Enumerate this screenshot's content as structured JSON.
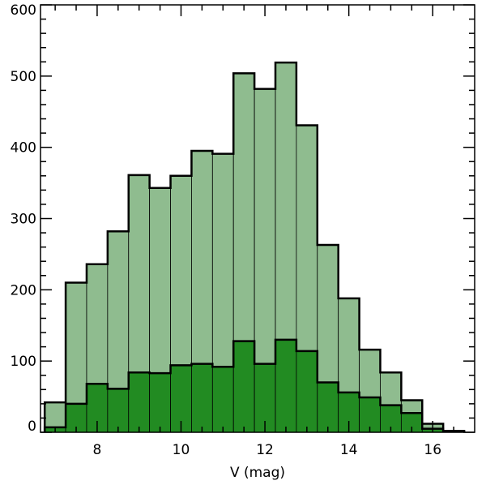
{
  "chart_data": {
    "type": "bar",
    "title": "",
    "xlabel": "V (mag)",
    "ylabel": "",
    "xlim": [
      6.65,
      17.0
    ],
    "ylim": [
      0,
      600
    ],
    "grid": false,
    "legend": "none",
    "bin_edges": [
      6.75,
      7.25,
      7.75,
      8.25,
      8.75,
      9.25,
      9.75,
      10.25,
      10.75,
      11.25,
      11.75,
      12.25,
      12.75,
      13.25,
      13.75,
      14.25,
      14.75,
      15.25,
      15.75,
      16.25,
      16.75
    ],
    "series": [
      {
        "color": "#8fbc8f",
        "values": [
          42,
          210,
          236,
          282,
          361,
          343,
          360,
          395,
          391,
          504,
          482,
          519,
          431,
          263,
          188,
          116,
          84,
          45,
          12,
          2
        ]
      },
      {
        "color": "#228b22",
        "values": [
          7,
          40,
          68,
          61,
          84,
          83,
          94,
          96,
          92,
          128,
          96,
          130,
          114,
          70,
          56,
          49,
          38,
          27,
          5,
          1
        ]
      }
    ],
    "x_ticks": [
      8,
      10,
      12,
      14,
      16
    ],
    "x_tick_labels": [
      "8",
      "10",
      "12",
      "14",
      "16"
    ],
    "y_ticks": [
      0,
      100,
      200,
      300,
      400,
      500,
      600
    ],
    "y_tick_labels": [
      "0",
      "100",
      "200",
      "300",
      "400",
      "500",
      "600"
    ]
  }
}
